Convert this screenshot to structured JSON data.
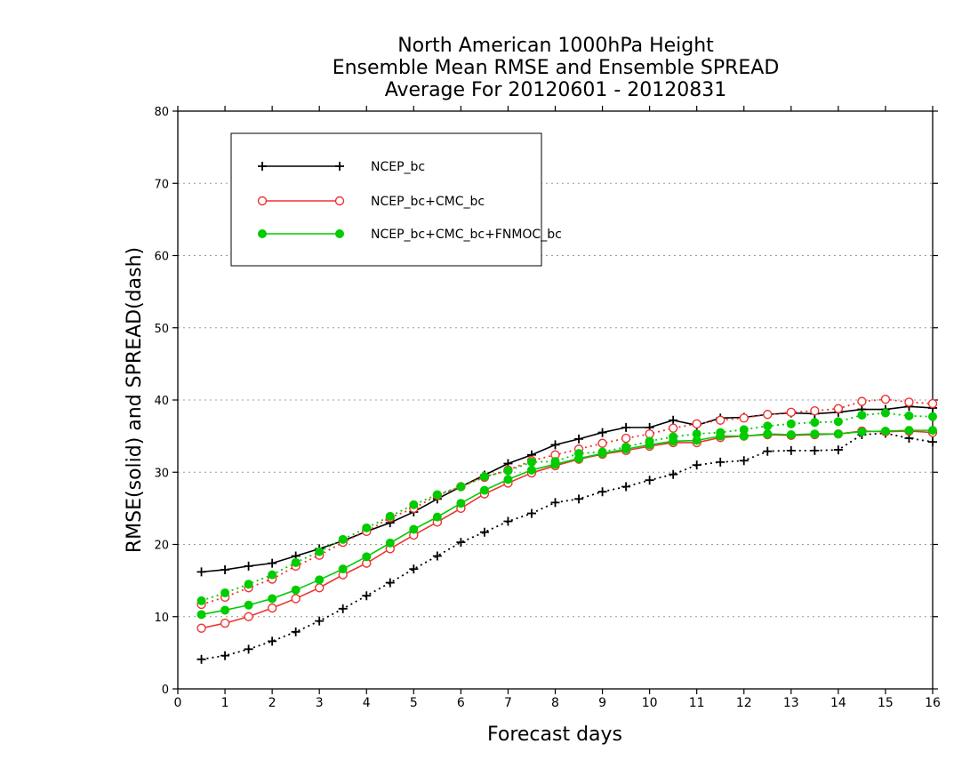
{
  "chart_data": {
    "type": "line",
    "title_lines": [
      "North American 1000hPa Height",
      "Ensemble Mean RMSE and Ensemble SPREAD",
      "Average For 20120601 - 20120831"
    ],
    "xlabel": "Forecast days",
    "ylabel": "RMSE(solid) and SPREAD(dash)",
    "xlim": [
      0,
      16
    ],
    "ylim": [
      0,
      80
    ],
    "x_ticks": [
      0,
      1,
      2,
      3,
      4,
      5,
      6,
      7,
      8,
      9,
      10,
      11,
      12,
      13,
      14,
      15,
      16
    ],
    "y_ticks": [
      0,
      10,
      20,
      30,
      40,
      50,
      60,
      70,
      80
    ],
    "grid": "horizontal dotted",
    "legend_position": "top-left",
    "x": [
      0.5,
      1,
      1.5,
      2,
      2.5,
      3,
      3.5,
      4,
      4.5,
      5,
      5.5,
      6,
      6.5,
      7,
      7.5,
      8,
      8.5,
      9,
      9.5,
      10,
      10.5,
      11,
      11.5,
      12,
      12.5,
      13,
      13.5,
      14,
      14.5,
      15,
      15.5,
      16
    ],
    "series": [
      {
        "name": "NCEP_bc",
        "color": "#000000",
        "marker": "plus",
        "rmse": [
          16.2,
          16.5,
          17.0,
          17.4,
          18.4,
          19.4,
          20.5,
          21.8,
          23.0,
          24.5,
          26.3,
          28.0,
          29.6,
          31.2,
          32.4,
          33.8,
          34.6,
          35.5,
          36.2,
          36.2,
          37.2,
          36.5,
          37.5,
          37.6,
          38.0,
          38.2,
          38.1,
          38.3,
          38.7,
          38.7,
          39.1,
          38.9
        ],
        "spread": [
          4.1,
          4.6,
          5.5,
          6.6,
          7.9,
          9.4,
          11.1,
          12.9,
          14.7,
          16.6,
          18.4,
          20.3,
          21.7,
          23.2,
          24.3,
          25.8,
          26.3,
          27.3,
          28.0,
          28.9,
          29.7,
          31.0,
          31.4,
          31.6,
          32.9,
          33.0,
          33.0,
          33.1,
          35.2,
          35.4,
          34.7,
          34.2
        ]
      },
      {
        "name": "NCEP_bc+CMC_bc",
        "color": "#ee3333",
        "marker": "open-circle",
        "rmse": [
          8.4,
          9.1,
          10.0,
          11.2,
          12.5,
          14.0,
          15.8,
          17.4,
          19.4,
          21.3,
          23.1,
          25.0,
          27.0,
          28.5,
          29.9,
          30.9,
          31.8,
          32.5,
          33.0,
          33.6,
          34.1,
          34.1,
          34.8,
          35.0,
          35.2,
          35.1,
          35.2,
          35.3,
          35.7,
          35.6,
          35.7,
          35.5
        ],
        "spread": [
          11.7,
          12.7,
          14.0,
          15.2,
          17.0,
          18.5,
          20.3,
          21.8,
          23.7,
          25.0,
          26.8,
          28.0,
          29.3,
          30.3,
          31.6,
          32.4,
          33.2,
          34.0,
          34.7,
          35.3,
          36.1,
          36.7,
          37.2,
          37.5,
          38.0,
          38.3,
          38.5,
          38.8,
          39.8,
          40.1,
          39.7,
          39.5
        ]
      },
      {
        "name": "NCEP_bc+CMC_bc+FNMOC_bc",
        "color": "#00cc00",
        "marker": "filled-circle",
        "rmse": [
          10.3,
          10.9,
          11.6,
          12.5,
          13.7,
          15.1,
          16.6,
          18.3,
          20.2,
          22.1,
          23.8,
          25.7,
          27.5,
          29.0,
          30.3,
          31.1,
          31.9,
          32.6,
          33.2,
          33.8,
          34.3,
          34.4,
          35.0,
          35.0,
          35.3,
          35.2,
          35.3,
          35.3,
          35.6,
          35.7,
          35.8,
          35.8
        ],
        "spread": [
          12.2,
          13.3,
          14.5,
          15.8,
          17.5,
          19.0,
          20.7,
          22.3,
          23.9,
          25.5,
          26.9,
          28.0,
          29.4,
          30.2,
          31.4,
          31.5,
          32.6,
          32.8,
          33.5,
          34.3,
          34.9,
          35.3,
          35.5,
          35.9,
          36.4,
          36.7,
          36.9,
          37.0,
          37.9,
          38.2,
          37.8,
          37.7
        ]
      }
    ]
  }
}
